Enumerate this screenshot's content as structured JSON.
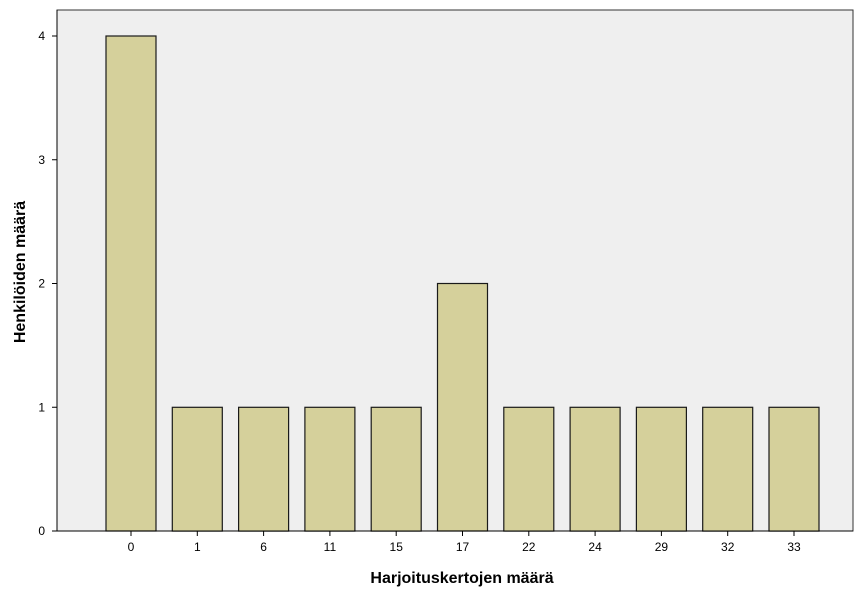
{
  "chart_data": {
    "type": "bar",
    "categories": [
      "0",
      "1",
      "6",
      "11",
      "15",
      "17",
      "22",
      "24",
      "29",
      "32",
      "33"
    ],
    "values": [
      4,
      1,
      1,
      1,
      1,
      2,
      1,
      1,
      1,
      1,
      1
    ],
    "xlabel": "Harjoituskertojen määrä",
    "ylabel": "Henkilöiden määrä",
    "ylim": [
      0,
      4
    ],
    "yticks": [
      0,
      1,
      2,
      3,
      4
    ],
    "grid": false,
    "legend": "none",
    "colors": {
      "plot_background": "#efefef",
      "bar_fill": "#d5d09b",
      "bar_stroke": "#1a1a1a"
    }
  }
}
